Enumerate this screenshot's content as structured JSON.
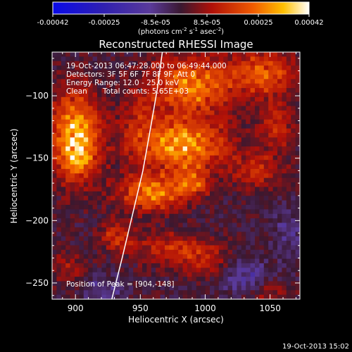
{
  "colorbar": {
    "ticks": [
      "-0.00042",
      "-0.00025",
      "-8.5e-05",
      "8.5e-05",
      "0.00025",
      "0.00042"
    ],
    "unit_main": "(photons cm",
    "unit_exp1": "-2",
    "unit_mid": " s",
    "unit_exp2": "-1",
    "unit_tail": " asec",
    "unit_exp3": "-2",
    "unit_close": ")"
  },
  "chart_data": {
    "type": "heatmap",
    "title": "Reconstructed RHESSI Image",
    "xlabel": "Heliocentric X (arcsec)",
    "ylabel": "Heliocentric Y (arcsec)",
    "xlim": [
      882,
      1073
    ],
    "ylim": [
      -263,
      -65
    ],
    "xticks": [
      900,
      950,
      1000,
      1050
    ],
    "yticks": [
      -100,
      -150,
      -200,
      -250
    ],
    "color_range": [
      -0.00042,
      0.00042
    ],
    "annotations": [
      "19-Oct-2013 06:47:28.000 to 06:49:44.000",
      "Detectors: 3F 5F 6F 7F 8F 9F, Att 0",
      "Energy Range: 12.0 - 25.0 keV",
      "Clean",
      "Total counts: 5.65E+03"
    ],
    "peak_label": "Position of Peak = [904,-148]",
    "peak": [
      904,
      -148
    ],
    "limb": [
      [
        928,
        -263
      ],
      [
        936,
        -230
      ],
      [
        944,
        -195
      ],
      [
        952,
        -160
      ],
      [
        958,
        -125
      ],
      [
        963,
        -95
      ],
      [
        967,
        -65
      ]
    ],
    "sources": [
      {
        "x": 900,
        "y": -132,
        "sx": 13,
        "sy": 24,
        "amp": 1.0
      },
      {
        "x": 902,
        "y": -150,
        "sx": 9,
        "sy": 9,
        "amp": 0.35
      },
      {
        "x": 982,
        "y": -140,
        "sx": 24,
        "sy": 14,
        "amp": 0.92
      },
      {
        "x": 958,
        "y": -178,
        "sx": 17,
        "sy": 10,
        "amp": 0.8
      },
      {
        "x": 990,
        "y": -170,
        "sx": 10,
        "sy": 8,
        "amp": 0.55
      },
      {
        "x": 990,
        "y": -92,
        "sx": 22,
        "sy": 16,
        "amp": 0.8
      },
      {
        "x": 1045,
        "y": -82,
        "sx": 18,
        "sy": 12,
        "amp": 0.65
      },
      {
        "x": 1055,
        "y": -125,
        "sx": 9,
        "sy": 14,
        "amp": 0.45
      },
      {
        "x": 1040,
        "y": -160,
        "sx": 14,
        "sy": 10,
        "amp": 0.4
      },
      {
        "x": 932,
        "y": -212,
        "sx": 9,
        "sy": 9,
        "amp": 0.45
      },
      {
        "x": 975,
        "y": -222,
        "sx": 22,
        "sy": 9,
        "amp": 0.42
      },
      {
        "x": 1000,
        "y": -235,
        "sx": 14,
        "sy": 8,
        "amp": 0.35
      },
      {
        "x": 895,
        "y": -240,
        "sx": 10,
        "sy": 10,
        "amp": 0.28
      },
      {
        "x": 1050,
        "y": -260,
        "sx": 12,
        "sy": 8,
        "amp": 0.3
      },
      {
        "x": 950,
        "y": -120,
        "sx": 12,
        "sy": 20,
        "amp": 0.25
      },
      {
        "x": 1030,
        "y": -245,
        "sx": 14,
        "sy": 10,
        "amp": -0.35
      },
      {
        "x": 920,
        "y": -255,
        "sx": 12,
        "sy": 8,
        "amp": -0.3
      },
      {
        "x": 1065,
        "y": -210,
        "sx": 8,
        "sy": 14,
        "amp": -0.25
      }
    ]
  },
  "footer": {
    "timestamp": "19-Oct-2013 15:02"
  }
}
